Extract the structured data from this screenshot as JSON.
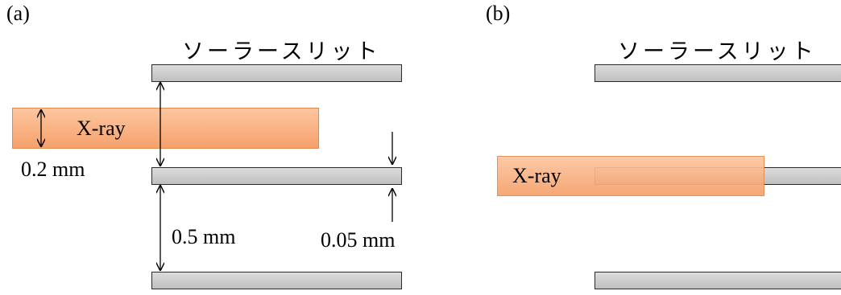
{
  "panel_a": {
    "label": "(a)",
    "slit_title": "ソーラースリット",
    "beam_label": "X-ray",
    "beam_width_label": "0.2 mm",
    "slit_spacing_label": "0.5 mm",
    "slit_thickness_label": "0.05 mm"
  },
  "panel_b": {
    "label": "(b)",
    "slit_title": "ソーラースリット",
    "beam_label": "X-ray"
  },
  "colors": {
    "beam_fill": "#f5a16c",
    "beam_border": "#e08a4e",
    "slit_fill": "#cfcfcf",
    "slit_border": "#2a2a2a"
  }
}
